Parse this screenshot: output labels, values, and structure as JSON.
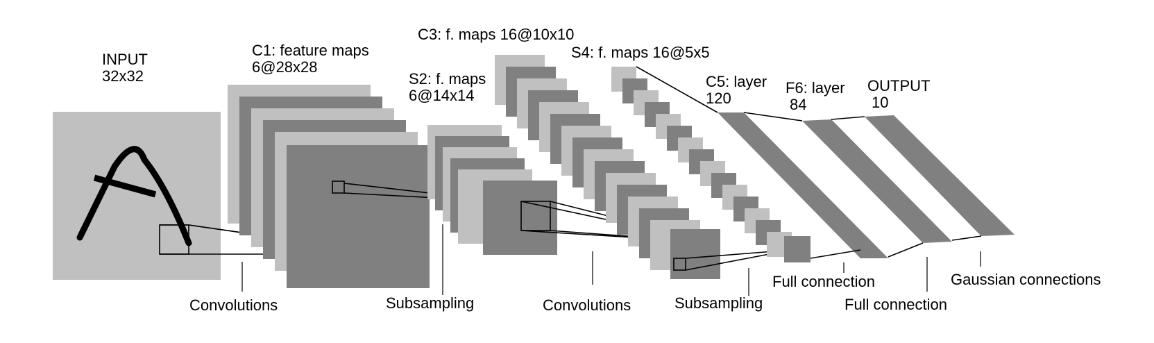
{
  "layers": {
    "input": {
      "name": "INPUT",
      "size": "32x32"
    },
    "c1": {
      "name": "C1: feature maps",
      "size": "6@28x28"
    },
    "s2": {
      "name": "S2: f. maps",
      "size": "6@14x14"
    },
    "c3": {
      "name": "C3: f. maps 16@10x10"
    },
    "s4": {
      "name": "S4: f. maps 16@5x5"
    },
    "c5": {
      "name": "C5: layer",
      "size": "120"
    },
    "f6": {
      "name": "F6: layer",
      "size": "84"
    },
    "output": {
      "name": "OUTPUT",
      "size": "10"
    }
  },
  "operations": {
    "conv1": "Convolutions",
    "sub1": "Subsampling",
    "conv2": "Convolutions",
    "sub2": "Subsampling",
    "full1": "Full connection",
    "full2": "Full connection",
    "gauss": "Gaussian connections"
  },
  "colors": {
    "light": "#c0c0c0",
    "dark": "#808080",
    "ink": "#000000"
  }
}
